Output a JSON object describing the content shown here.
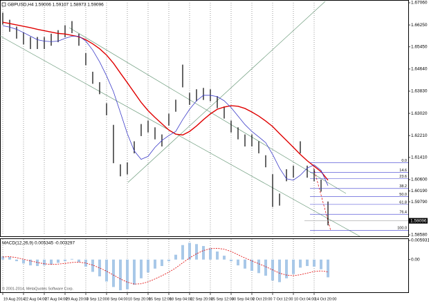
{
  "chart_data": [
    {
      "type": "hilo",
      "title": "GBPUSD,H4 1.59006 1.59107 1.58973 1.59096",
      "categories": [
        "19 Aug 2014",
        null,
        null,
        "22 Aug 04:00",
        null,
        null,
        "27 Aug 04:00",
        null,
        null,
        "29 Aug 20:00",
        null,
        null,
        "3 Sep 12:00",
        null,
        null,
        "8 Sep 04:00",
        null,
        null,
        "10 Sep 20:00",
        null,
        null,
        "15 Sep 12:00",
        null,
        null,
        "18 Sep 04:00",
        null,
        null,
        "22 Sep 20:00",
        null,
        null,
        "25 Sep 12:00",
        null,
        null,
        "30 Sep 04:00",
        null,
        null,
        "2 Oct 20:00",
        null,
        null,
        "7 Oct 12:00",
        null,
        null,
        "10 Oct 04:00",
        null,
        null,
        "14 Oct 20:00",
        null,
        null
      ],
      "high": [
        1.667,
        1.6644,
        1.6619,
        1.6598,
        1.6581,
        1.6581,
        1.6581,
        1.6593,
        1.6606,
        1.6624,
        1.6639,
        1.6593,
        1.6522,
        1.6454,
        1.6416,
        1.6339,
        1.626,
        1.6116,
        1.6123,
        1.62,
        1.6263,
        1.6276,
        1.6251,
        1.6225,
        1.6301,
        1.6352,
        1.648,
        1.6377,
        1.639,
        1.6395,
        1.639,
        1.6365,
        1.6327,
        1.6276,
        1.6251,
        1.6225,
        1.6225,
        1.62,
        1.6149,
        1.608,
        1.6009,
        1.6098,
        1.6111,
        1.62,
        1.6111,
        1.6098,
        1.606,
        1.598
      ],
      "low": [
        1.6626,
        1.66,
        1.6575,
        1.6554,
        1.6537,
        1.6537,
        1.6537,
        1.6549,
        1.6562,
        1.658,
        1.6595,
        1.6549,
        1.6478,
        1.641,
        1.6372,
        1.6295,
        1.612,
        1.6072,
        1.6079,
        1.6156,
        1.6219,
        1.6232,
        1.6207,
        1.6181,
        1.6257,
        1.6308,
        1.6397,
        1.6333,
        1.6346,
        1.6351,
        1.6346,
        1.6321,
        1.6283,
        1.6232,
        1.6207,
        1.6181,
        1.6181,
        1.6156,
        1.6105,
        1.596,
        1.5965,
        1.6054,
        1.6067,
        1.6156,
        1.6067,
        1.6054,
        1.6016,
        1.5893
      ],
      "color": "#000000",
      "series": [
        {
          "color": "#e00000",
          "values": [
            1.6635,
            1.663,
            1.6625,
            1.662,
            1.6615,
            1.6609,
            1.6604,
            1.6599,
            1.6594,
            1.6592,
            1.6587,
            1.6582,
            1.6571,
            1.6556,
            1.6538,
            1.6515,
            1.6485,
            1.6449,
            1.6414,
            1.6378,
            1.6342,
            1.6312,
            1.6287,
            1.6264,
            1.6241,
            1.6226,
            1.6223,
            1.6236,
            1.6256,
            1.6279,
            1.63,
            1.6317,
            1.6325,
            1.633,
            1.6328,
            1.632,
            1.6307,
            1.6292,
            1.6274,
            1.6254,
            1.6228,
            1.6203,
            1.6178,
            1.6152,
            1.6129,
            1.6109,
            1.6089,
            1.6058
          ]
        },
        {
          "color": "#3a3ac8",
          "values": [
            1.6622,
            1.6617,
            1.6609,
            1.6597,
            1.6584,
            1.6571,
            1.6566,
            1.6564,
            1.6566,
            1.6576,
            1.6584,
            1.6584,
            1.6566,
            1.6533,
            1.649,
            1.6439,
            1.6381,
            1.6305,
            1.6228,
            1.6165,
            1.6134,
            1.6145,
            1.6178,
            1.6203,
            1.6221,
            1.6236,
            1.6279,
            1.6317,
            1.6348,
            1.6368,
            1.6368,
            1.6363,
            1.6348,
            1.6323,
            1.6292,
            1.6261,
            1.6236,
            1.6216,
            1.6195,
            1.6152,
            1.6102,
            1.6063,
            1.6058,
            1.6076,
            1.6102,
            1.6114,
            1.6094,
            1.6038
          ]
        }
      ],
      "ylim": [
        1.5858,
        1.6706
      ],
      "yticks": [
        {
          "value": 1.6706,
          "label": "1.67060"
        },
        {
          "value": 1.6625,
          "label": "1.66250"
        },
        {
          "value": 1.6545,
          "label": "1.65450"
        },
        {
          "value": 1.6464,
          "label": "1.64640"
        },
        {
          "value": 1.6383,
          "label": "1.63830"
        },
        {
          "value": 1.6302,
          "label": "1.63020"
        },
        {
          "value": 1.6221,
          "label": "1.62210"
        },
        {
          "value": 1.6141,
          "label": "1.61410"
        },
        {
          "value": 1.606,
          "label": "1.60600"
        },
        {
          "value": 1.6019,
          "label": "1.60190"
        },
        {
          "value": 1.5979,
          "label": "1.59790"
        },
        {
          "value": 1.5858,
          "label": "1.58580"
        }
      ],
      "last_price": {
        "value": 1.59096,
        "label": "1.59096"
      },
      "fibonacci": {
        "color": "#3a3ad0",
        "start": 1.6122,
        "end": 1.5875,
        "levels": [
          {
            "value": 0,
            "label": "0.0"
          },
          14.6,
          23.6,
          38.2,
          {
            "value": 50,
            "label": "50.0"
          },
          61.8,
          76.4,
          {
            "value": 100,
            "label": "100.0"
          }
        ]
      },
      "grid": true
    },
    {
      "type": "macd",
      "title": "MACD(12,26,9) 0.005345 -0.003297",
      "values": [
        0.001,
        0.0008,
        -0.0005,
        -0.0012,
        -0.0018,
        -0.002,
        -0.0018,
        -0.0015,
        -0.001,
        -0.0005,
        0.0002,
        -0.0008,
        -0.0022,
        -0.0038,
        -0.0052,
        -0.0068,
        -0.0085,
        -0.0095,
        -0.0092,
        -0.0078,
        -0.0058,
        -0.004,
        -0.0028,
        -0.002,
        -0.0005,
        0.0015,
        0.0045,
        0.0052,
        0.0048,
        0.0042,
        0.0035,
        0.0025,
        0.0012,
        -0.0005,
        -0.0018,
        -0.0028,
        -0.0035,
        -0.0042,
        -0.005,
        -0.0065,
        -0.007,
        -0.0058,
        -0.0045,
        -0.0025,
        -0.002,
        -0.0022,
        -0.003,
        -0.0055
      ],
      "color": "#a8c8e8",
      "signal": {
        "color": "#e00000",
        "values": [
          0.0008,
          0.0009,
          0.0006,
          0.0001,
          -0.0004,
          -0.0009,
          -0.0013,
          -0.0015,
          -0.0014,
          -0.0012,
          -0.0009,
          -0.0008,
          -0.0011,
          -0.0017,
          -0.0026,
          -0.0036,
          -0.0048,
          -0.006,
          -0.007,
          -0.0076,
          -0.0075,
          -0.0069,
          -0.006,
          -0.005,
          -0.0039,
          -0.0026,
          -0.001,
          0.0005,
          0.0018,
          0.0028,
          0.0034,
          0.0035,
          0.0032,
          0.0025,
          0.0015,
          0.0005,
          -0.0004,
          -0.0013,
          -0.0022,
          -0.0032,
          -0.0042,
          -0.0048,
          -0.005,
          -0.0047,
          -0.0042,
          -0.0037,
          -0.0035,
          -0.0038
        ]
      },
      "ylim": [
        -0.0097,
        0.005931
      ],
      "yticks": [
        0.005931,
        {
          "value": 0,
          "label": "0.00"
        }
      ]
    }
  ],
  "footer": "© 2001-2014, MetaQuotes Software Corp."
}
